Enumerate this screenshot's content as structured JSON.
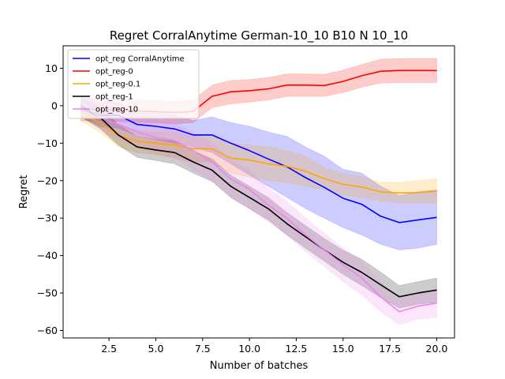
{
  "chart_data": {
    "type": "line",
    "title": "Regret CorralAnytime German-10_10 B10 N 10_10",
    "xlabel": "Number of batches",
    "ylabel": "Regret",
    "xlim": [
      0.05,
      20.95
    ],
    "ylim": [
      -62,
      16
    ],
    "xticks": [
      2.5,
      5.0,
      7.5,
      10.0,
      12.5,
      15.0,
      17.5,
      20.0
    ],
    "xtick_labels": [
      "2.5",
      "5.0",
      "7.5",
      "10.0",
      "12.5",
      "15.0",
      "17.5",
      "20.0"
    ],
    "yticks": [
      10,
      0,
      -10,
      -20,
      -30,
      -40,
      -50,
      -60
    ],
    "ytick_labels": [
      "10",
      "0",
      "−10",
      "−20",
      "−30",
      "−40",
      "−50",
      "−60"
    ],
    "grid": false,
    "legend_position": "top-left",
    "x": [
      1,
      2,
      3,
      4,
      5,
      6,
      7,
      8,
      9,
      10,
      11,
      12,
      13,
      14,
      15,
      16,
      17,
      18,
      19,
      20
    ],
    "series": [
      {
        "name": "opt_reg CorralAnytime",
        "color": "#0000ff",
        "values": [
          0,
          -2.5,
          -2.5,
          -5,
          -5.5,
          -6.2,
          -7.8,
          -7.8,
          -10,
          -12,
          -14.2,
          -16.3,
          -19.2,
          -21.8,
          -24.7,
          -26.3,
          -29.5,
          -31.2,
          -30.5,
          -29.8
        ],
        "lower": [
          -3,
          -5.5,
          -6,
          -8,
          -9,
          -10,
          -11,
          -12.5,
          -15.5,
          -18.5,
          -21.5,
          -24.5,
          -27.5,
          -30,
          -32.5,
          -34.5,
          -37,
          -38.5,
          -38,
          -37
        ],
        "upper": [
          3,
          1,
          1,
          -2,
          -2,
          -2.5,
          -4,
          -3,
          -4.5,
          -5.5,
          -7,
          -8.2,
          -11,
          -13.5,
          -17,
          -18,
          -21.5,
          -24,
          -23,
          -22.5
        ]
      },
      {
        "name": "opt_reg-0",
        "color": "#ff0000",
        "values": [
          -1,
          -1,
          -1.2,
          -1.4,
          -1.6,
          -1.8,
          -1.5,
          2.5,
          3.7,
          4,
          4.5,
          5.5,
          5.5,
          5.4,
          6.5,
          8,
          9.2,
          9.4,
          9.4,
          9.4
        ],
        "lower": [
          -4,
          -4,
          -4.2,
          -4.4,
          -4.6,
          -4.8,
          -4.5,
          -0.5,
          0.5,
          1,
          1.5,
          2.5,
          2.5,
          2.5,
          3.5,
          5,
          6,
          6.2,
          6.2,
          6.2
        ],
        "upper": [
          2,
          2,
          1.8,
          1.6,
          1.4,
          1.2,
          1.5,
          5.5,
          6.7,
          7,
          7.5,
          8.5,
          8.5,
          8.4,
          9.5,
          11,
          12.4,
          12.6,
          12.6,
          12.6
        ]
      },
      {
        "name": "opt_reg-0.1",
        "color": "#ffa500",
        "values": [
          -2,
          -4.5,
          -8,
          -9.5,
          -10,
          -10.5,
          -11.5,
          -11.5,
          -14,
          -14.5,
          -15.5,
          -16.2,
          -17.5,
          -19.5,
          -21,
          -21.7,
          -23,
          -23.3,
          -23.2,
          -22.8
        ],
        "lower": [
          -4,
          -7,
          -11,
          -12.5,
          -13,
          -14,
          -15,
          -15,
          -18,
          -19,
          -20,
          -20.5,
          -21.5,
          -22.5,
          -24,
          -24.5,
          -25.5,
          -26,
          -26,
          -26
        ],
        "upper": [
          0,
          -2,
          -5,
          -6.5,
          -7,
          -7,
          -8,
          -8,
          -10,
          -10.5,
          -11,
          -12,
          -13.5,
          -16.5,
          -18,
          -19,
          -20.5,
          -20.5,
          -20,
          -19.5
        ]
      },
      {
        "name": "opt_reg-1",
        "color": "#000000",
        "values": [
          -0.5,
          -3,
          -7.8,
          -11,
          -11.8,
          -12.5,
          -15,
          -17.2,
          -21.5,
          -24.5,
          -27.5,
          -31.5,
          -35,
          -38.5,
          -41.8,
          -44.5,
          -47.8,
          -51,
          -50,
          -49.2
        ],
        "lower": [
          -3,
          -6,
          -10.5,
          -13.8,
          -14.6,
          -15.5,
          -18,
          -20.2,
          -24.5,
          -27.5,
          -30.5,
          -34.5,
          -38,
          -41.5,
          -45,
          -48,
          -51.2,
          -54,
          -53,
          -52.5
        ],
        "upper": [
          2,
          0,
          -5,
          -8.2,
          -9,
          -9.5,
          -12,
          -14.2,
          -18.5,
          -21.5,
          -24.5,
          -28.5,
          -32,
          -35.5,
          -38.6,
          -41,
          -44.4,
          -48,
          -47,
          -46
        ]
      },
      {
        "name": "opt_reg-10",
        "color": "#ee82ee",
        "values": [
          1,
          -3,
          -5,
          -7,
          -8.5,
          -9.3,
          -12,
          -15,
          -19.5,
          -22.3,
          -26.5,
          -30,
          -34.5,
          -38.5,
          -42.5,
          -46,
          -51,
          -55,
          -53.5,
          -52.7
        ],
        "lower": [
          -1.5,
          -6,
          -9,
          -11,
          -13,
          -14,
          -17,
          -20,
          -24.5,
          -27.5,
          -31,
          -34.5,
          -39,
          -43,
          -47,
          -50.5,
          -55,
          -58.5,
          -57,
          -56.5
        ],
        "upper": [
          3.5,
          0,
          -1,
          -3,
          -4,
          -4.6,
          -7,
          -10,
          -14.5,
          -17.1,
          -22,
          -25.5,
          -30,
          -34,
          -38,
          -41.5,
          -47,
          -51.5,
          -50,
          -49
        ]
      }
    ]
  }
}
